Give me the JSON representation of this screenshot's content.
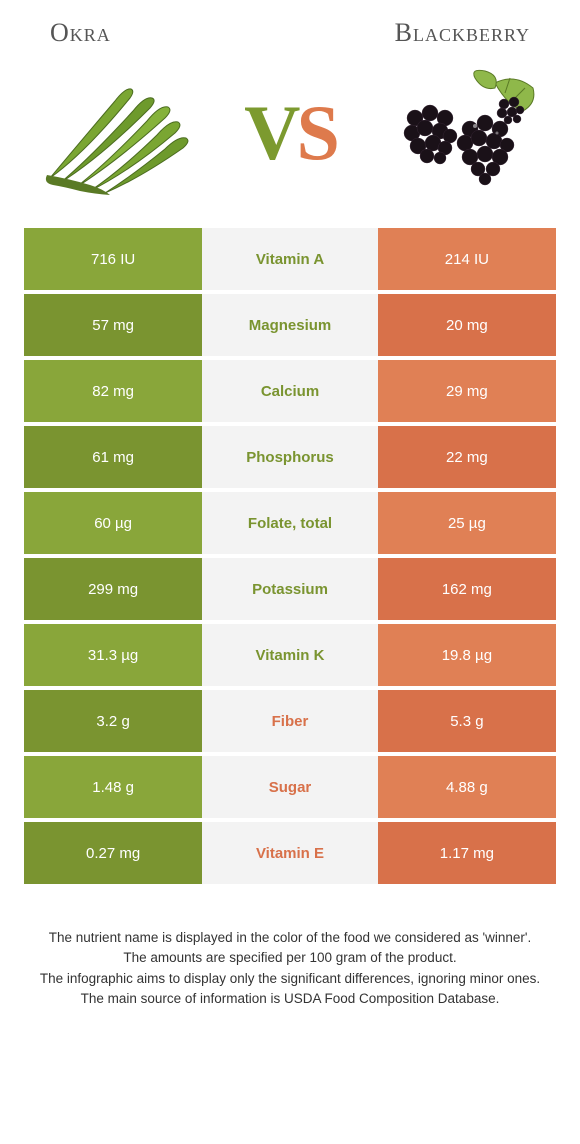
{
  "header": {
    "left_title": "Okra",
    "right_title": "Blackberry",
    "vs_v": "V",
    "vs_s": "S"
  },
  "colors": {
    "okra_green_med": "#89a63a",
    "okra_green_dark": "#7a9430",
    "bb_orange_med": "#e08055",
    "bb_orange_dark": "#d8714a",
    "mid_bg": "#f3f3f3",
    "text_green": "#7a9430",
    "text_orange": "#d8714a"
  },
  "rows": [
    {
      "left": "716 IU",
      "label": "Vitamin A",
      "right": "214 IU",
      "winner": "left"
    },
    {
      "left": "57 mg",
      "label": "Magnesium",
      "right": "20 mg",
      "winner": "left"
    },
    {
      "left": "82 mg",
      "label": "Calcium",
      "right": "29 mg",
      "winner": "left"
    },
    {
      "left": "61 mg",
      "label": "Phosphorus",
      "right": "22 mg",
      "winner": "left"
    },
    {
      "left": "60 µg",
      "label": "Folate, total",
      "right": "25 µg",
      "winner": "left"
    },
    {
      "left": "299 mg",
      "label": "Potassium",
      "right": "162 mg",
      "winner": "left"
    },
    {
      "left": "31.3 µg",
      "label": "Vitamin K",
      "right": "19.8 µg",
      "winner": "left"
    },
    {
      "left": "3.2 g",
      "label": "Fiber",
      "right": "5.3 g",
      "winner": "right"
    },
    {
      "left": "1.48 g",
      "label": "Sugar",
      "right": "4.88 g",
      "winner": "right"
    },
    {
      "left": "0.27 mg",
      "label": "Vitamin E",
      "right": "1.17 mg",
      "winner": "right"
    }
  ],
  "row_shading": {
    "left_classes": [
      "bg-green-med",
      "bg-green-dark"
    ],
    "right_classes": [
      "bg-orange-med",
      "bg-orange-dark"
    ]
  },
  "notes": [
    "The nutrient name is displayed in the color of the food we considered as 'winner'.",
    "The amounts are specified per 100 gram of the product.",
    "The infographic aims to display only the significant differences, ignoring minor ones.",
    "The main source of information is USDA Food Composition Database."
  ]
}
